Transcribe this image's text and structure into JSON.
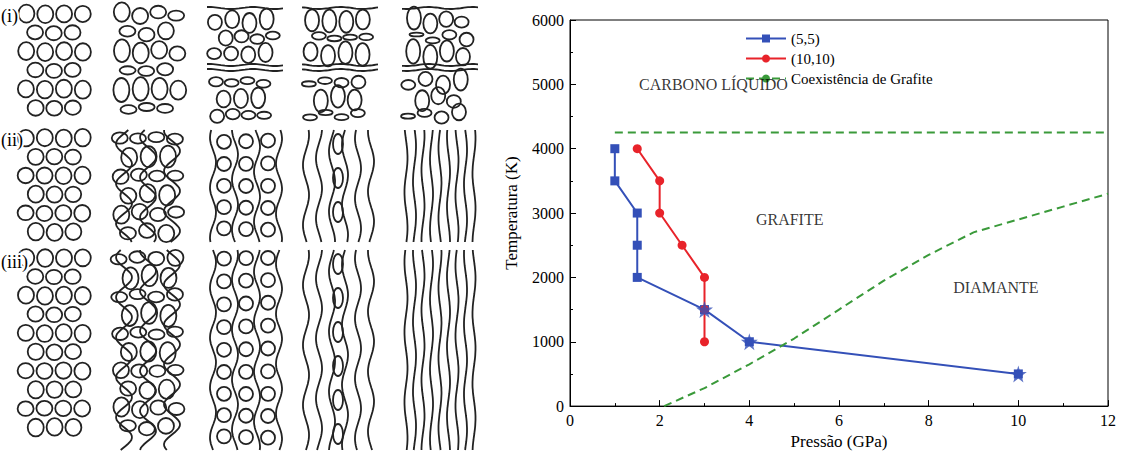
{
  "panel_labels": [
    "(i)",
    "(ii)",
    "(iii)"
  ],
  "chart_data": {
    "type": "line",
    "xlabel": "Pressão (GPa)",
    "ylabel": "Temperatura (K)",
    "xlim": [
      0,
      12
    ],
    "ylim": [
      0,
      6000
    ],
    "xticks": [
      0,
      2,
      4,
      6,
      8,
      10,
      12
    ],
    "yticks": [
      0,
      1000,
      2000,
      3000,
      4000,
      5000,
      6000
    ],
    "legend": "upper right",
    "series": [
      {
        "name": "(5,5)",
        "color": "#3450b8",
        "marker": "square",
        "line_style": "solid",
        "x": [
          1,
          1,
          1.5,
          1.5,
          1.5,
          3,
          4,
          10
        ],
        "values": [
          4000,
          3500,
          3000,
          2500,
          2000,
          1500,
          1000,
          500
        ]
      },
      {
        "name": "(10,10)",
        "color": "#e8232a",
        "marker": "circle",
        "line_style": "solid",
        "x": [
          1.5,
          2,
          2,
          2.5,
          3,
          3,
          3
        ],
        "values": [
          4000,
          3500,
          3000,
          2500,
          2000,
          1500,
          1000
        ]
      },
      {
        "name": "Coexistência de Grafite",
        "color": "#3a9a3a",
        "marker": "none",
        "line_style": "dashed",
        "x": [
          1,
          12,
          12,
          2.1,
          3,
          4,
          5,
          6,
          7,
          8,
          9,
          10,
          11,
          12
        ],
        "values": [
          4250,
          4250,
          null,
          0,
          280,
          650,
          1050,
          1500,
          1950,
          2350,
          2700,
          2900,
          3100,
          3300
        ]
      },
      {
        "type": "scatter",
        "color": "#3450b8",
        "marker": "star",
        "x": [
          3,
          4,
          10
        ],
        "values": [
          1500,
          1000,
          500
        ]
      }
    ],
    "annotations": [
      {
        "text": "CARBONO LÍQUIDO",
        "x": 3.2,
        "y": 5000
      },
      {
        "text": "GRAFITE",
        "x": 4.9,
        "y": 2900
      },
      {
        "text": "DIAMANTE",
        "x": 9.5,
        "y": 1850
      }
    ]
  }
}
